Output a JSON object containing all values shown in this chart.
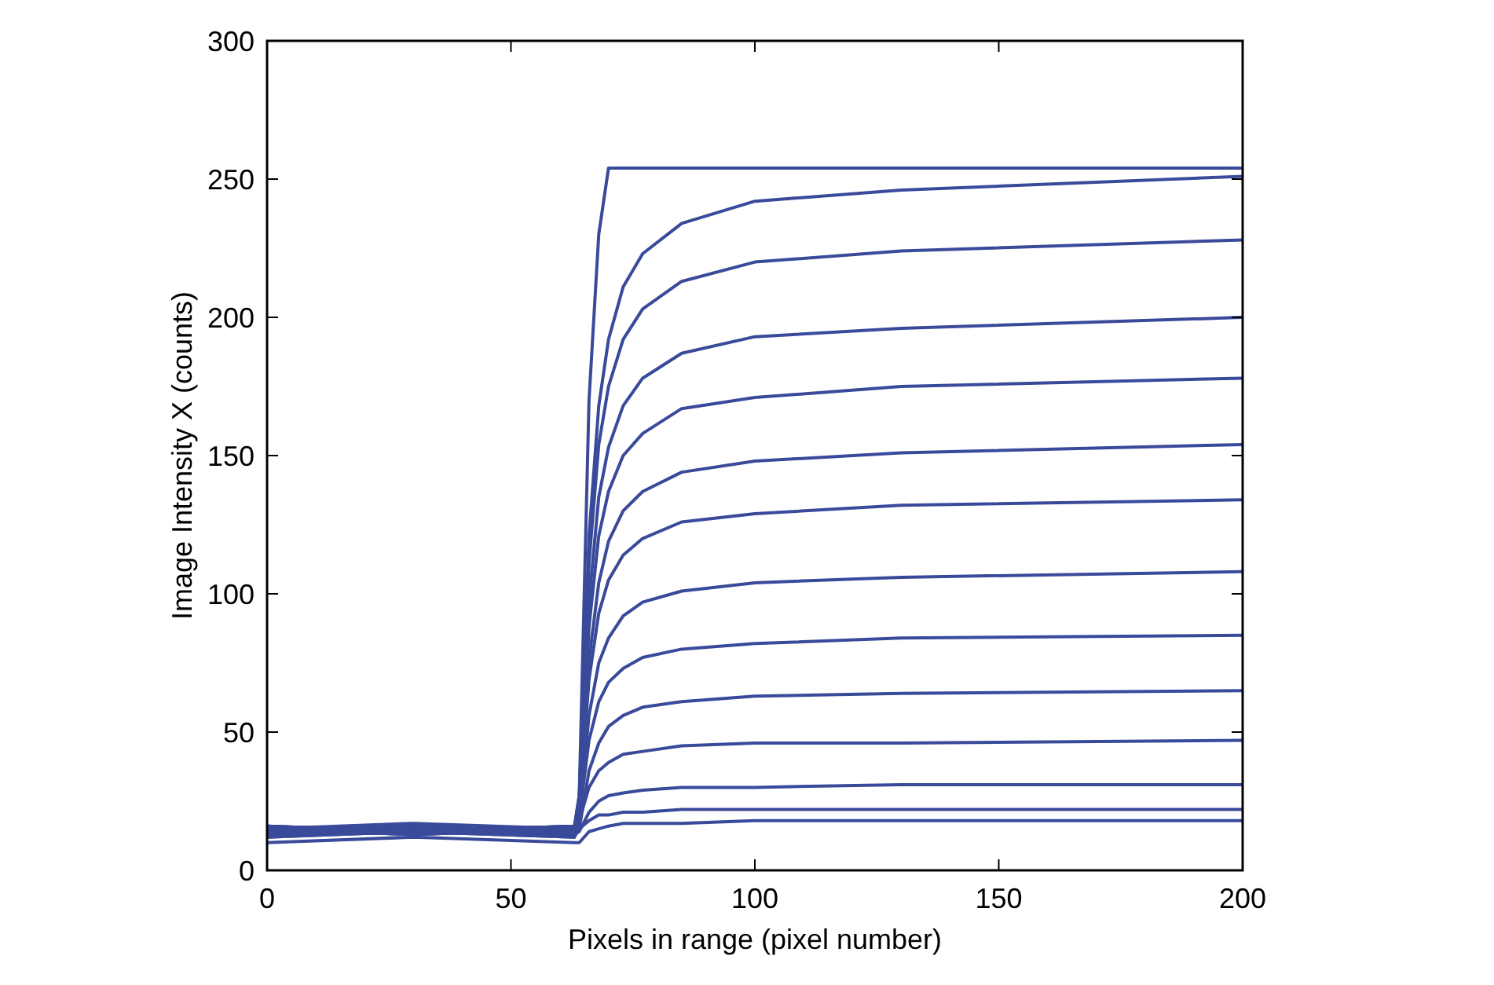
{
  "chart_data": {
    "type": "line",
    "xlabel": "Pixels in range (pixel number)",
    "ylabel": "Image Intensity X (counts)",
    "x": [
      0,
      30,
      63,
      64,
      66,
      68,
      70,
      73,
      77,
      85,
      100,
      130,
      200
    ],
    "series": [
      {
        "color": "#3a4a9a",
        "values": [
          15,
          17,
          15,
          27,
          170,
          230,
          254,
          254,
          254,
          254,
          254,
          254,
          254
        ]
      },
      {
        "color": "#3a4a9a",
        "values": [
          14,
          16,
          14,
          26,
          121,
          168,
          192,
          211,
          223,
          234,
          242,
          246,
          251
        ]
      },
      {
        "color": "#3a4a9a",
        "values": [
          16,
          14,
          16,
          27,
          111,
          154,
          175,
          192,
          203,
          213,
          220,
          224,
          228
        ]
      },
      {
        "color": "#3a4a9a",
        "values": [
          13,
          15,
          13,
          22,
          97,
          135,
          153,
          168,
          178,
          187,
          193,
          196,
          200
        ]
      },
      {
        "color": "#3a4a9a",
        "values": [
          15,
          13,
          15,
          23,
          88,
          121,
          137,
          150,
          158,
          167,
          171,
          175,
          178
        ]
      },
      {
        "color": "#3a4a9a",
        "values": [
          12,
          14,
          12,
          19,
          76,
          104,
          119,
          130,
          137,
          144,
          148,
          151,
          154
        ]
      },
      {
        "color": "#3a4a9a",
        "values": [
          16,
          14,
          16,
          22,
          69,
          93,
          105,
          114,
          120,
          126,
          129,
          132,
          134
        ]
      },
      {
        "color": "#3a4a9a",
        "values": [
          13,
          15,
          13,
          18,
          56,
          75,
          84,
          92,
          97,
          101,
          104,
          106,
          108
        ]
      },
      {
        "color": "#3a4a9a",
        "values": [
          15,
          13,
          15,
          19,
          47,
          61,
          68,
          73,
          77,
          80,
          82,
          84,
          85
        ]
      },
      {
        "color": "#3a4a9a",
        "values": [
          12,
          14,
          12,
          15,
          36,
          46,
          52,
          56,
          59,
          61,
          63,
          64,
          65
        ]
      },
      {
        "color": "#3a4a9a",
        "values": [
          16,
          14,
          16,
          18,
          30,
          36,
          39,
          42,
          43,
          45,
          46,
          46,
          47
        ]
      },
      {
        "color": "#3a4a9a",
        "values": [
          13,
          15,
          13,
          14,
          21,
          25,
          27,
          28,
          29,
          30,
          30,
          31,
          31
        ]
      },
      {
        "color": "#3a4a9a",
        "values": [
          15,
          13,
          15,
          15,
          18,
          20,
          20,
          21,
          21,
          22,
          22,
          22,
          22
        ]
      },
      {
        "color": "#3a4a9a",
        "values": [
          10,
          12,
          10,
          10,
          14,
          15,
          16,
          17,
          17,
          17,
          18,
          18,
          18
        ]
      }
    ],
    "xlim": [
      0,
      200
    ],
    "xticks": [
      0,
      50,
      100,
      150,
      200
    ],
    "ylim": [
      0,
      300
    ],
    "yticks": [
      0,
      50,
      100,
      150,
      200,
      250,
      300
    ],
    "grid": false,
    "marker": "none",
    "line_style": "solid"
  }
}
